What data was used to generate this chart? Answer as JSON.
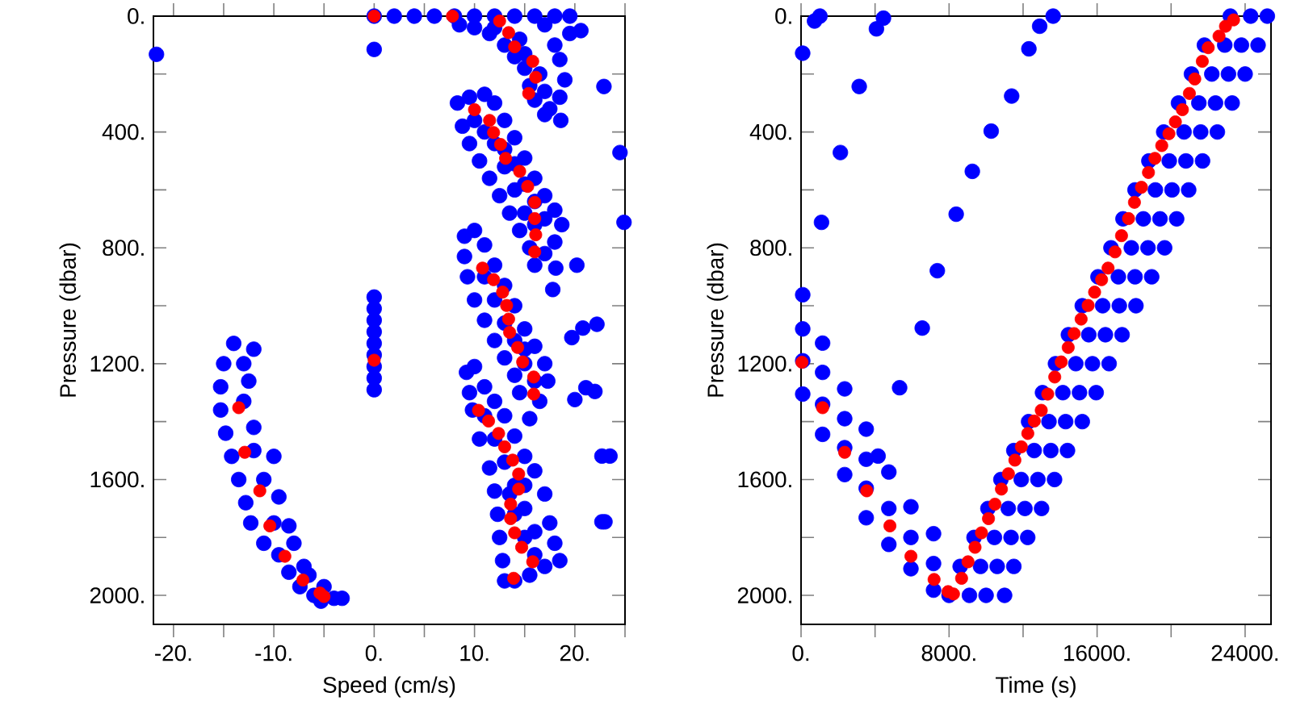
{
  "chart_data": [
    {
      "type": "scatter",
      "xlabel": "Speed (cm/s)",
      "ylabel": "Pressure (dbar)",
      "xlim": [
        -22,
        25
      ],
      "ylim": [
        2100,
        0
      ],
      "xticks": [
        {
          "value": -20,
          "label": "-20."
        },
        {
          "value": -15,
          "label": null
        },
        {
          "value": -10,
          "label": "-10."
        },
        {
          "value": -5,
          "label": null
        },
        {
          "value": 0,
          "label": "0."
        },
        {
          "value": 5,
          "label": null
        },
        {
          "value": 10,
          "label": "10."
        },
        {
          "value": 15,
          "label": null
        },
        {
          "value": 20,
          "label": "20."
        },
        {
          "value": 25,
          "label": null
        }
      ],
      "yticks": [
        {
          "value": 0,
          "label": "0."
        },
        {
          "value": 200,
          "label": null
        },
        {
          "value": 400,
          "label": "400."
        },
        {
          "value": 600,
          "label": null
        },
        {
          "value": 800,
          "label": "800."
        },
        {
          "value": 1000,
          "label": null
        },
        {
          "value": 1200,
          "label": "1200."
        },
        {
          "value": 1400,
          "label": null
        },
        {
          "value": 1600,
          "label": "1600."
        },
        {
          "value": 1800,
          "label": null
        },
        {
          "value": 2000,
          "label": "2000."
        }
      ],
      "series": [
        {
          "color": "#0000ff",
          "x": [
            -21.7,
            0,
            20.6,
            22.9,
            24.5,
            24.9,
            0,
            2,
            4,
            6,
            8,
            10,
            12,
            14,
            16,
            18,
            19.5,
            8.5,
            10,
            11.5,
            13,
            14,
            15,
            15.5,
            16,
            17.5,
            18.5,
            19,
            18.5,
            18,
            19.5,
            17,
            14.5,
            16.5,
            17,
            15,
            12,
            18.6,
            17,
            8.3,
            9.5,
            11,
            12,
            13,
            14,
            15,
            16,
            17,
            18,
            18.7,
            18,
            17,
            16,
            15.5,
            14.5,
            13.5,
            12.5,
            11.5,
            10.5,
            9.5,
            8.8,
            10,
            12,
            13,
            14,
            15,
            16,
            17,
            16,
            15,
            14,
            13,
            11,
            18.1,
            20.2,
            17.8,
            20.8,
            22.2,
            19.7,
            20.0,
            22.0,
            21.1,
            22.7,
            23.5,
            22.7,
            23.0,
            9,
            10,
            11,
            12,
            13,
            14,
            15,
            16,
            17,
            17.3,
            16.5,
            15.5,
            14.5,
            14,
            13,
            12,
            11,
            10,
            9.3,
            9,
            11,
            12,
            13,
            14,
            15,
            16,
            15,
            9.2,
            10,
            11,
            12,
            13,
            14,
            15,
            16,
            17,
            17.5,
            18,
            18.5,
            17,
            15.5,
            14,
            13,
            12.8,
            12.5,
            12.3,
            12,
            11.5,
            10.5,
            9.8,
            9.5,
            11,
            12,
            13,
            14,
            15,
            16,
            16,
            15,
            14,
            13.5,
            15,
            -14,
            -12,
            -15,
            -13,
            -15.3,
            -12.5,
            -15.3,
            -13,
            -14.8,
            -12,
            -14.2,
            -12,
            -10,
            -13.5,
            -11,
            -12.8,
            -9.5,
            -12.3,
            -10,
            -8.5,
            -11,
            -9.5,
            -8,
            -8.5,
            -7.4,
            -6.5,
            -6,
            -5.3,
            -4,
            -3.2,
            -5,
            -7,
            0,
            0,
            0,
            0,
            0,
            0,
            0,
            0,
            0
          ],
          "values": [
            132,
            115,
            50,
            243,
            471,
            712,
            0,
            0,
            0,
            0,
            0,
            0,
            0,
            0,
            0,
            0,
            0,
            30,
            40,
            60,
            100,
            140,
            180,
            240,
            290,
            320,
            280,
            220,
            150,
            100,
            60,
            30,
            80,
            200,
            260,
            130,
            40,
            360,
            340,
            300,
            280,
            270,
            300,
            360,
            420,
            490,
            560,
            620,
            670,
            720,
            780,
            820,
            860,
            800,
            740,
            680,
            620,
            560,
            500,
            440,
            380,
            360,
            440,
            520,
            600,
            680,
            720,
            700,
            640,
            580,
            510,
            460,
            400,
            870,
            860,
            944,
            1077,
            1064,
            1110,
            1324,
            1296,
            1283,
            1519,
            1519,
            1746,
            1746,
            760,
            740,
            790,
            860,
            930,
            1000,
            1080,
            1140,
            1200,
            1260,
            1330,
            1390,
            1300,
            1240,
            1180,
            1120,
            1050,
            980,
            900,
            830,
            900,
            980,
            1060,
            1120,
            1200,
            1260,
            1150,
            1230,
            1210,
            1280,
            1330,
            1380,
            1450,
            1520,
            1570,
            1650,
            1750,
            1820,
            1880,
            1900,
            1930,
            1950,
            1950,
            1880,
            1800,
            1720,
            1640,
            1560,
            1460,
            1360,
            1300,
            1380,
            1460,
            1540,
            1620,
            1700,
            1780,
            1860,
            1800,
            1720,
            1650,
            1620,
            1130,
            1150,
            1200,
            1200,
            1280,
            1260,
            1360,
            1330,
            1440,
            1420,
            1520,
            1500,
            1520,
            1600,
            1600,
            1680,
            1660,
            1750,
            1750,
            1760,
            1820,
            1860,
            1820,
            1920,
            1970,
            1930,
            2000,
            2020,
            2010,
            2010,
            1970,
            1900,
            970,
            1010,
            1050,
            1090,
            1130,
            1170,
            1210,
            1250,
            1290
          ]
        },
        {
          "color": "#ff0000",
          "x": [
            0,
            7.8,
            12.5,
            13.4,
            14.0,
            15.8,
            16.1,
            15.4,
            10.0,
            11.5,
            11.9,
            12.6,
            13.1,
            14.5,
            15.3,
            16.0,
            16.0,
            16.1,
            16.0,
            10.8,
            11.9,
            12.8,
            13.2,
            13.4,
            13.5,
            14.3,
            0,
            14.8,
            15.9,
            15.9,
            -13.5,
            -12.9,
            -11.4,
            -10.4,
            -8.9,
            -7.1,
            -5.4,
            -5.0,
            10.4,
            11.4,
            12.4,
            13.0,
            13.8,
            14.4,
            14.4,
            13.6,
            13.6,
            14.0,
            14.7,
            15.8,
            13.9
          ],
          "values": [
            0,
            0,
            17,
            57,
            106,
            156,
            211,
            267,
            323,
            360,
            402,
            443,
            491,
            536,
            588,
            643,
            699,
            755,
            814,
            870,
            910,
            953,
            999,
            1046,
            1092,
            1144,
            1188,
            1194,
            1246,
            1305,
            1352,
            1506,
            1639,
            1760,
            1865,
            1947,
            1992,
            2004,
            1361,
            1398,
            1441,
            1487,
            1533,
            1581,
            1633,
            1685,
            1735,
            1784,
            1834,
            1884,
            1941
          ]
        }
      ]
    },
    {
      "type": "scatter",
      "xlabel": "Time (s)",
      "ylabel": "Pressure (dbar)",
      "xlim": [
        0,
        25400
      ],
      "ylim": [
        2100,
        0
      ],
      "xticks": [
        {
          "value": 0,
          "label": "0."
        },
        {
          "value": 4000,
          "label": null
        },
        {
          "value": 8000,
          "label": "8000."
        },
        {
          "value": 12000,
          "label": null
        },
        {
          "value": 16000,
          "label": "16000."
        },
        {
          "value": 20000,
          "label": null
        },
        {
          "value": 24000,
          "label": "24000."
        }
      ],
      "yticks": [
        {
          "value": 0,
          "label": "0."
        },
        {
          "value": 200,
          "label": null
        },
        {
          "value": 400,
          "label": "400."
        },
        {
          "value": 600,
          "label": null
        },
        {
          "value": 800,
          "label": "800."
        },
        {
          "value": 1000,
          "label": null
        },
        {
          "value": 1200,
          "label": "1200."
        },
        {
          "value": 1400,
          "label": null
        },
        {
          "value": 1600,
          "label": "1600."
        },
        {
          "value": 1800,
          "label": null
        },
        {
          "value": 2000,
          "label": "2000."
        }
      ],
      "series": [
        {
          "color": "#0000ff",
          "x": [
            87,
            728,
            1019,
            3144,
            2125,
            1106,
            4075,
            4454,
            6550,
            7365,
            8384,
            9257,
            10276,
            11382,
            12314,
            12896,
            13624,
            5327,
            90,
            90,
            90,
            90,
            1164,
            1164,
            1164,
            1164,
            2358,
            2358,
            2358,
            2358,
            3522,
            3522,
            3522,
            3522,
            4163,
            4745,
            4745,
            4745,
            5938,
            5938,
            5938,
            7161,
            7161,
            7161,
            23200,
            24300,
            25200,
            21800,
            22900,
            23800,
            24700,
            21100,
            22200,
            23100,
            24000,
            20400,
            21500,
            22400,
            23300,
            19600,
            20700,
            21600,
            22500,
            18800,
            19900,
            20800,
            21700,
            18050,
            19150,
            20050,
            20950,
            17400,
            18500,
            19400,
            20300,
            16750,
            17850,
            18750,
            19650,
            16050,
            17150,
            18050,
            18950,
            15200,
            16300,
            17200,
            18100,
            14450,
            15550,
            16450,
            17350,
            13750,
            14850,
            15750,
            16650,
            13050,
            14150,
            15050,
            15950,
            12300,
            13400,
            14300,
            15200,
            11500,
            12600,
            13500,
            14400,
            10800,
            11900,
            12800,
            13700,
            10100,
            11200,
            12100,
            13000,
            9350,
            10450,
            11350,
            12250,
            8600,
            9700,
            10600,
            11500,
            8000,
            9100,
            10000,
            11000
          ],
          "values": [
            128,
            17,
            0,
            243,
            471,
            712,
            44,
            7,
            1077,
            879,
            684,
            536,
            397,
            276,
            113,
            35,
            0,
            1283,
            962,
            1080,
            1190,
            1305,
            1129,
            1230,
            1340,
            1444,
            1287,
            1390,
            1490,
            1583,
            1426,
            1530,
            1630,
            1732,
            1519,
            1574,
            1700,
            1824,
            1694,
            1800,
            1908,
            1787,
            1890,
            1982,
            0,
            0,
            0,
            100,
            100,
            100,
            100,
            200,
            200,
            200,
            200,
            300,
            300,
            300,
            300,
            400,
            400,
            400,
            400,
            500,
            500,
            500,
            500,
            600,
            600,
            600,
            600,
            700,
            700,
            700,
            700,
            800,
            800,
            800,
            800,
            900,
            900,
            900,
            900,
            1000,
            1000,
            1000,
            1000,
            1100,
            1100,
            1100,
            1100,
            1200,
            1200,
            1200,
            1200,
            1300,
            1300,
            1300,
            1300,
            1400,
            1400,
            1400,
            1400,
            1500,
            1500,
            1500,
            1500,
            1600,
            1600,
            1600,
            1600,
            1700,
            1700,
            1700,
            1700,
            1800,
            1800,
            1800,
            1800,
            1900,
            1900,
            1900,
            1900,
            2000,
            2000,
            2000,
            2000
          ]
        },
        {
          "color": "#ff0000",
          "x": [
            23375,
            22939,
            22590,
            22007,
            21687,
            21279,
            20988,
            20610,
            20231,
            19882,
            19494,
            19125,
            18776,
            18397,
            18018,
            17699,
            17320,
            16971,
            16593,
            16243,
            15865,
            15516,
            15137,
            14759,
            14439,
            14060,
            13711,
            13332,
            12983,
            12605,
            12255,
            11906,
            11557,
            11207,
            10829,
            10480,
            10130,
            9752,
            9403,
            9024,
            8675,
            8238,
            7947,
            7190,
            5938,
            4803,
            3551,
            2358,
            1164,
            50
          ],
          "values": [
            13,
            35,
            69,
            109,
            156,
            217,
            267,
            323,
            365,
            406,
            447,
            491,
            540,
            591,
            643,
            699,
            758,
            814,
            870,
            910,
            953,
            999,
            1046,
            1096,
            1144,
            1194,
            1246,
            1305,
            1361,
            1398,
            1441,
            1487,
            1533,
            1580,
            1633,
            1685,
            1735,
            1784,
            1834,
            1884,
            1941,
            1995,
            1987,
            1945,
            1865,
            1760,
            1639,
            1506,
            1352,
            1195
          ]
        }
      ]
    }
  ]
}
